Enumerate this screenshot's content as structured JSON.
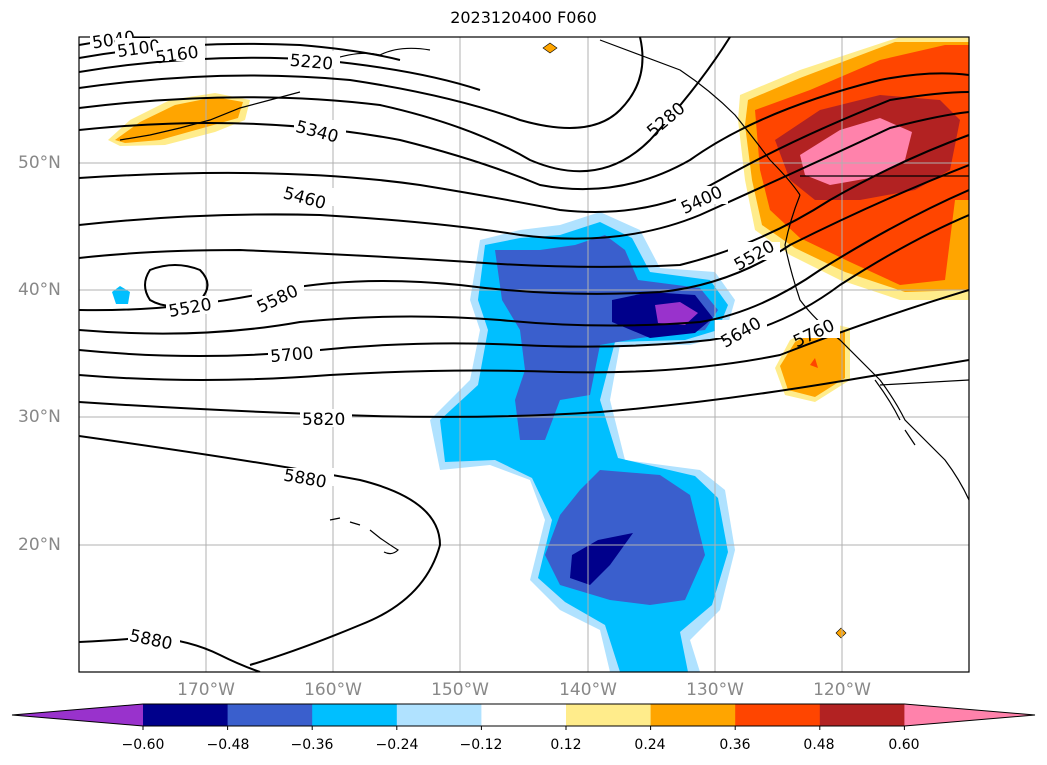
{
  "title": "2023120400 F060",
  "map": {
    "projection": "plate-carree",
    "lon_range": [
      -180,
      -110
    ],
    "lat_range": [
      10,
      60
    ],
    "gridlines": true,
    "lon_labels": [
      "170°W",
      "160°W",
      "150°W",
      "140°W",
      "130°W",
      "120°W"
    ],
    "lat_labels": [
      "50°N",
      "40°N",
      "30°N",
      "20°N"
    ],
    "contour_labels": [
      "5040",
      "5100",
      "5160",
      "5220",
      "5280",
      "5340",
      "5460",
      "5400",
      "5520",
      "5520",
      "5580",
      "5640",
      "5700",
      "5760",
      "5820",
      "5880",
      "5880"
    ],
    "fill_regions": [
      {
        "name": "pacific-negative-anomaly",
        "min_value": -0.6,
        "location": "central-pacific"
      },
      {
        "name": "west-coast-positive-anomaly",
        "max_value": 0.6,
        "location": "pacific-northwest"
      },
      {
        "name": "aleutian-positive-anomaly",
        "max_value": 0.36,
        "location": "aleutians"
      },
      {
        "name": "socal-positive-anomaly",
        "max_value": 0.48,
        "location": "off-southern-california"
      }
    ]
  },
  "colorbar": {
    "ticks": [
      "−0.60",
      "−0.48",
      "−0.36",
      "−0.24",
      "−0.12",
      "0.12",
      "0.24",
      "0.36",
      "0.48",
      "0.60"
    ],
    "colors": [
      "#9932cc",
      "#00008b",
      "#3a5fcd",
      "#00bfff",
      "#b0e2ff",
      "#ffffff",
      "#ffec8b",
      "#ffa500",
      "#ff4500",
      "#b22222",
      "#ff82ab"
    ]
  }
}
